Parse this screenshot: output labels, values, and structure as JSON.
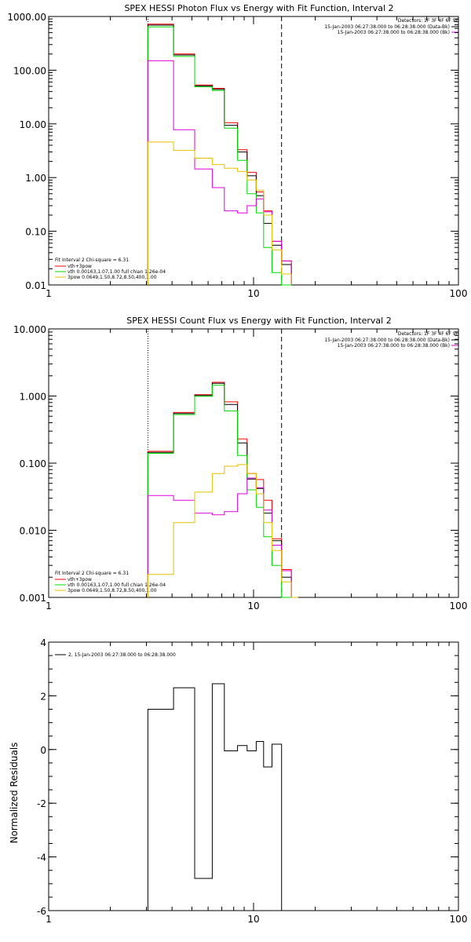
{
  "colors": {
    "black": "#000000",
    "red": "#ff0000",
    "green": "#00dd00",
    "magenta": "#dd00dd",
    "yellow": "#e6c000"
  },
  "chart_data": [
    {
      "type": "line",
      "step": true,
      "title": "SPEX HESSI Photon Flux vs Energy with Fit Function, Interval 2",
      "xscale": "log",
      "yscale": "log",
      "xlim": [
        1,
        100
      ],
      "ylim": [
        0.01,
        1000
      ],
      "x_ticks": [
        "1",
        "10",
        "100"
      ],
      "y_ticks": [
        "0.01",
        "0.10",
        "1.00",
        "10.00",
        "100.00",
        "1000.00"
      ],
      "legend_top_right": [
        "Detectors: 1F 3F 4F 6F 9F",
        "15-Jan-2003 06:27:38.000 to 06:28:38.000 (Data-Bk)",
        "15-Jan-2003 06:27:38.000 to 06:28:38.000 (Bk)"
      ],
      "legend_bottom_left": [
        "Fit Interval 2   Chi-square = 6.31",
        "vth+3pow",
        "vth 0.00163,1.07,1.00  full chian 1.26e-04",
        "3pow 0.0649,1.50,8.72,8.50,400,1.00"
      ],
      "markers": [
        {
          "x": 3.05,
          "style": "dotted"
        },
        {
          "x": 13.7,
          "style": "dashed"
        }
      ],
      "bin_edges": [
        3.05,
        4.07,
        5.16,
        6.29,
        7.2,
        8.35,
        9.3,
        10.3,
        11.2,
        12.3,
        13.7,
        15.3
      ],
      "series": [
        {
          "color": "red",
          "values": [
            720,
            200,
            53,
            46,
            10.5,
            3.3,
            1.25,
            0.54,
            0.24,
            0.065,
            0.028
          ]
        },
        {
          "color": "black",
          "values": [
            690,
            192,
            51,
            44,
            9.4,
            3.0,
            1.08,
            0.46,
            0.14,
            0.055,
            0.024
          ]
        },
        {
          "color": "green",
          "values": [
            640,
            180,
            49,
            42,
            8.3,
            2.1,
            0.5,
            0.22,
            0.05,
            0.017,
            0.01
          ]
        },
        {
          "color": "magenta",
          "values": [
            150,
            7.8,
            1.45,
            0.65,
            0.24,
            0.22,
            0.3,
            0.4,
            0.23,
            0.065,
            0.028
          ]
        },
        {
          "color": "yellow",
          "values": [
            4.6,
            3.2,
            2.3,
            1.75,
            1.5,
            1.3,
            0.9,
            0.58,
            0.2,
            0.045,
            0.016
          ]
        }
      ]
    },
    {
      "type": "line",
      "step": true,
      "title": "SPEX HESSI Count Flux vs Energy with Fit Function, Interval 2",
      "xscale": "log",
      "yscale": "log",
      "xlim": [
        1,
        100
      ],
      "ylim": [
        0.001,
        10
      ],
      "x_ticks": [
        "1",
        "10",
        "100"
      ],
      "y_ticks": [
        "0.001",
        "0.010",
        "0.100",
        "1.000",
        "10.000"
      ],
      "legend_top_right": [
        "Detectors: 1F 3F 4F 6F 9F",
        "15-Jan-2003 06:27:38.000 to 06:28:38.000 (Data-Bk)",
        "15-Jan-2003 06:27:38.000 to 06:28:38.000 (Bk)"
      ],
      "legend_bottom_left": [
        "Fit Interval 2   Chi-square = 6.31",
        "vth+3pow",
        "vth 0.00163,1.07,1.00  full chian 1.26e-04",
        "3pow 0.0649,1.50,8.72,8.50,400,1.00"
      ],
      "markers": [
        {
          "x": 3.05,
          "style": "dotted"
        },
        {
          "x": 13.7,
          "style": "dashed"
        }
      ],
      "bin_edges": [
        3.05,
        4.07,
        5.16,
        6.29,
        7.2,
        8.35,
        9.3,
        10.3,
        11.2,
        12.3,
        13.7,
        15.3,
        16.5
      ],
      "series": [
        {
          "color": "red",
          "values": [
            0.15,
            0.57,
            1.05,
            1.6,
            0.82,
            0.23,
            0.07,
            0.057,
            0.028,
            0.0075,
            0.0026,
            0.001
          ]
        },
        {
          "color": "black",
          "values": [
            0.145,
            0.55,
            1.02,
            1.55,
            0.75,
            0.2,
            0.058,
            0.042,
            0.018,
            0.007,
            0.002,
            0.001
          ]
        },
        {
          "color": "green",
          "values": [
            0.14,
            0.53,
            0.99,
            1.45,
            0.6,
            0.13,
            0.04,
            0.022,
            0.008,
            0.003,
            0.001,
            0.001
          ]
        },
        {
          "color": "magenta",
          "values": [
            0.033,
            0.028,
            0.018,
            0.017,
            0.019,
            0.035,
            0.06,
            0.043,
            0.02,
            0.006,
            0.0025,
            0.001
          ]
        },
        {
          "color": "yellow",
          "values": [
            0.0022,
            0.013,
            0.037,
            0.07,
            0.09,
            0.095,
            0.07,
            0.035,
            0.013,
            0.005,
            0.0017,
            0.001
          ]
        }
      ]
    },
    {
      "type": "line",
      "step": true,
      "ylabel": "Normalized Residuals",
      "xscale": "log",
      "yscale": "linear",
      "xlim": [
        1,
        100
      ],
      "ylim": [
        -6,
        4
      ],
      "x_ticks": [
        "1",
        "10",
        "100"
      ],
      "y_ticks": [
        "-6",
        "-4",
        "-2",
        "0",
        "2",
        "4"
      ],
      "legend_top_left": [
        "2, 15-Jan-2003 06:27:38.000 to 06:28:38.000"
      ],
      "bin_edges": [
        3.05,
        4.07,
        5.16,
        6.29,
        7.2,
        8.35,
        9.3,
        10.3,
        11.2,
        12.3,
        13.7
      ],
      "series": [
        {
          "color": "black",
          "values": [
            1.5,
            2.3,
            -4.8,
            2.45,
            -0.05,
            0.15,
            -0.05,
            0.3,
            -0.65,
            0.2
          ]
        }
      ]
    }
  ]
}
